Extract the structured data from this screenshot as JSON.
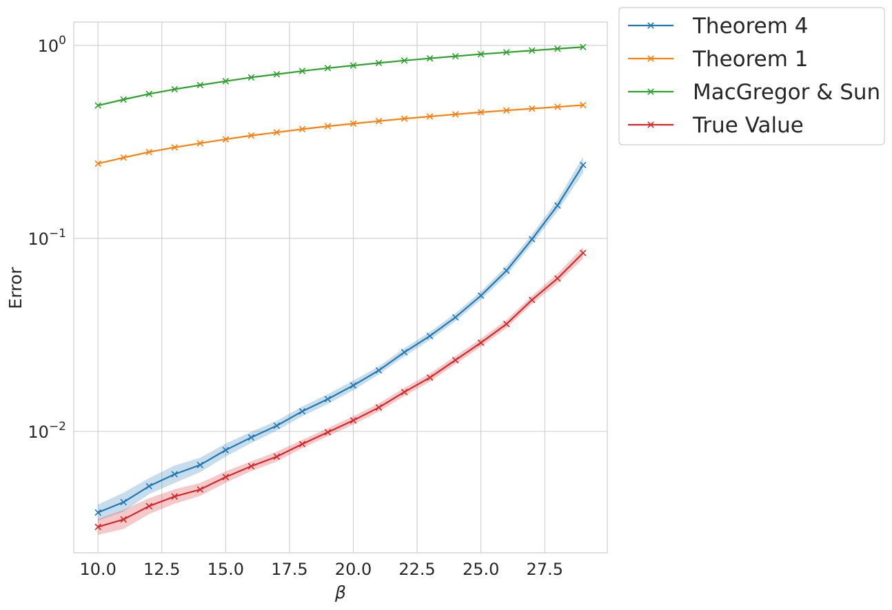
{
  "chart_data": {
    "type": "line",
    "title": "",
    "xlabel": "β",
    "ylabel": "Error",
    "yscale": "log",
    "xlim": [
      9.05,
      29.95
    ],
    "ylim": [
      0.00235,
      1.32
    ],
    "grid": true,
    "legend_position": "outside-top-right",
    "x_ticks": [
      10.0,
      12.5,
      15.0,
      17.5,
      20.0,
      22.5,
      25.0,
      27.5
    ],
    "x_tick_labels": [
      "10.0",
      "12.5",
      "15.0",
      "17.5",
      "20.0",
      "22.5",
      "25.0",
      "27.5"
    ],
    "y_ticks": [
      {
        "value": 1,
        "base": "10",
        "exp": "0"
      },
      {
        "value": 0.1,
        "base": "10",
        "exp": "−1"
      },
      {
        "value": 0.01,
        "base": "10",
        "exp": "−2"
      }
    ],
    "x": [
      10,
      11,
      12,
      13,
      14,
      15,
      16,
      17,
      18,
      19,
      20,
      21,
      22,
      23,
      24,
      25,
      26,
      27,
      28,
      29
    ],
    "series": [
      {
        "name": "Theorem 4",
        "color": "#1f77b4",
        "marker": "x",
        "values": [
          0.0038,
          0.0043,
          0.0052,
          0.006,
          0.0067,
          0.008,
          0.0093,
          0.0107,
          0.0127,
          0.0147,
          0.0173,
          0.0207,
          0.0257,
          0.0312,
          0.039,
          0.0505,
          0.068,
          0.099,
          0.148,
          0.24
        ],
        "band": [
          0.1,
          0.12,
          0.1,
          0.11,
          0.09,
          0.08,
          0.07,
          0.06,
          0.06,
          0.06,
          0.06,
          0.05,
          0.05,
          0.05,
          0.05,
          0.05,
          0.06,
          0.06,
          0.07,
          0.1
        ]
      },
      {
        "name": "Theorem 1",
        "color": "#ff7f0e",
        "marker": "x",
        "values": [
          0.244,
          0.262,
          0.28,
          0.296,
          0.311,
          0.326,
          0.341,
          0.354,
          0.368,
          0.381,
          0.393,
          0.405,
          0.417,
          0.428,
          0.439,
          0.45,
          0.46,
          0.47,
          0.48,
          0.49
        ],
        "band": []
      },
      {
        "name": "MacGregor & Sun",
        "color": "#2ca02c",
        "marker": "x",
        "values": [
          0.488,
          0.524,
          0.56,
          0.592,
          0.622,
          0.652,
          0.682,
          0.708,
          0.736,
          0.762,
          0.786,
          0.81,
          0.834,
          0.856,
          0.878,
          0.9,
          0.92,
          0.94,
          0.96,
          0.98
        ],
        "band": []
      },
      {
        "name": "True Value",
        "color": "#d62728",
        "marker": "x",
        "values": [
          0.0032,
          0.0035,
          0.0041,
          0.0046,
          0.005,
          0.0058,
          0.0066,
          0.0074,
          0.0086,
          0.0099,
          0.0114,
          0.0133,
          0.016,
          0.019,
          0.0234,
          0.0288,
          0.036,
          0.048,
          0.062,
          0.084
        ],
        "band": [
          0.1,
          0.12,
          0.1,
          0.09,
          0.08,
          0.07,
          0.06,
          0.06,
          0.05,
          0.05,
          0.05,
          0.05,
          0.05,
          0.05,
          0.05,
          0.05,
          0.05,
          0.05,
          0.06,
          0.07
        ]
      }
    ]
  }
}
